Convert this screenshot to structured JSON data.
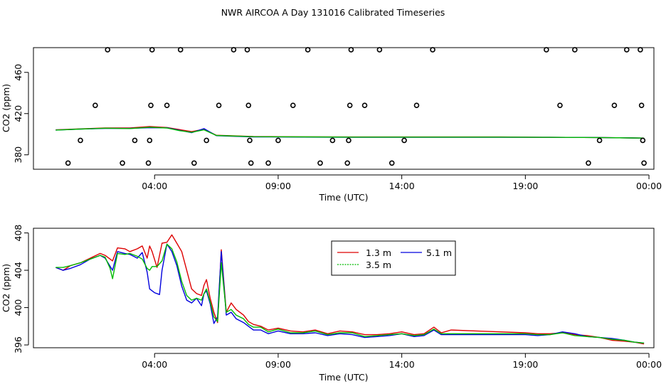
{
  "figure_title": "NWR AIRCOA A  Day 131016  Calibrated Timeseries",
  "colors": {
    "red": "#dd0000",
    "green": "#00bb00",
    "blue": "#0000dd",
    "axis": "#000000"
  },
  "chart_data": [
    {
      "type": "line",
      "title": "",
      "xlabel": "Time (UTC)",
      "ylabel": "CO2 (ppm)",
      "xlim": [
        -0.9,
        24.2
      ],
      "ylim": [
        366,
        484
      ],
      "xticks": [
        {
          "at": 4,
          "label": "04:00"
        },
        {
          "at": 9,
          "label": "09:00"
        },
        {
          "at": 14,
          "label": "14:00"
        },
        {
          "at": 19,
          "label": "19:00"
        },
        {
          "at": 24,
          "label": "00:00"
        }
      ],
      "yticks": [
        380,
        420,
        460
      ],
      "grid": false,
      "calibration_points": [
        {
          "x": 0.5,
          "y": 372
        },
        {
          "x": 1.0,
          "y": 394
        },
        {
          "x": 1.6,
          "y": 428
        },
        {
          "x": 2.1,
          "y": 482
        },
        {
          "x": 2.7,
          "y": 372
        },
        {
          "x": 3.2,
          "y": 394
        },
        {
          "x": 3.75,
          "y": 372
        },
        {
          "x": 3.8,
          "y": 394
        },
        {
          "x": 3.85,
          "y": 428
        },
        {
          "x": 3.9,
          "y": 482
        },
        {
          "x": 4.5,
          "y": 428
        },
        {
          "x": 5.05,
          "y": 482
        },
        {
          "x": 5.6,
          "y": 372
        },
        {
          "x": 6.1,
          "y": 394
        },
        {
          "x": 6.6,
          "y": 428
        },
        {
          "x": 7.2,
          "y": 482
        },
        {
          "x": 7.75,
          "y": 482
        },
        {
          "x": 7.8,
          "y": 428
        },
        {
          "x": 7.85,
          "y": 394
        },
        {
          "x": 7.9,
          "y": 372
        },
        {
          "x": 8.6,
          "y": 372
        },
        {
          "x": 9.0,
          "y": 394
        },
        {
          "x": 9.6,
          "y": 428
        },
        {
          "x": 10.2,
          "y": 482
        },
        {
          "x": 10.7,
          "y": 372
        },
        {
          "x": 11.2,
          "y": 394
        },
        {
          "x": 11.8,
          "y": 372
        },
        {
          "x": 11.85,
          "y": 394
        },
        {
          "x": 11.9,
          "y": 428
        },
        {
          "x": 11.95,
          "y": 482
        },
        {
          "x": 12.5,
          "y": 428
        },
        {
          "x": 13.1,
          "y": 482
        },
        {
          "x": 13.6,
          "y": 372
        },
        {
          "x": 14.1,
          "y": 394
        },
        {
          "x": 14.6,
          "y": 428
        },
        {
          "x": 15.25,
          "y": 482
        },
        {
          "x": 19.85,
          "y": 482
        },
        {
          "x": 20.4,
          "y": 428
        },
        {
          "x": 21.0,
          "y": 482
        },
        {
          "x": 21.55,
          "y": 372
        },
        {
          "x": 22.0,
          "y": 394
        },
        {
          "x": 22.6,
          "y": 428
        },
        {
          "x": 23.1,
          "y": 482
        },
        {
          "x": 23.65,
          "y": 482
        },
        {
          "x": 23.7,
          "y": 428
        },
        {
          "x": 23.75,
          "y": 394
        },
        {
          "x": 23.8,
          "y": 372
        }
      ],
      "series": [
        {
          "name": "1.3 m",
          "color": "#dd0000",
          "x": [
            0.0,
            1.0,
            2.0,
            3.0,
            3.8,
            4.5,
            5.0,
            5.5,
            6.0,
            6.5,
            8.0,
            10.0,
            12.0,
            14.0,
            16.0,
            18.0,
            20.0,
            22.0,
            23.8
          ],
          "values": [
            404.2,
            405.2,
            406.0,
            406.0,
            407.5,
            406.5,
            404.5,
            402.5,
            404.8,
            399.0,
            397.8,
            397.5,
            397.3,
            397.3,
            397.3,
            397.3,
            397.0,
            396.8,
            396.2
          ]
        },
        {
          "name": "3.5 m",
          "color": "#00bb00",
          "x": [
            0.0,
            1.0,
            2.0,
            3.0,
            3.8,
            4.5,
            5.0,
            5.5,
            6.0,
            6.5,
            8.0,
            10.0,
            12.0,
            14.0,
            16.0,
            18.0,
            20.0,
            22.0,
            23.8
          ],
          "values": [
            404.0,
            405.0,
            405.8,
            405.5,
            406.8,
            406.0,
            403.5,
            401.8,
            404.2,
            398.8,
            397.6,
            397.4,
            397.2,
            397.2,
            397.2,
            397.2,
            397.0,
            396.8,
            396.2
          ]
        },
        {
          "name": "5.1 m",
          "color": "#0000dd",
          "x": [
            0.0,
            1.0,
            2.0,
            3.0,
            3.8,
            4.5,
            5.0,
            5.5,
            6.0,
            6.5,
            8.0,
            10.0,
            12.0,
            14.0,
            16.0,
            18.0,
            20.0,
            22.0,
            23.8
          ],
          "values": [
            404.0,
            405.0,
            405.6,
            405.6,
            406.4,
            406.2,
            403.8,
            401.5,
            405.4,
            398.6,
            397.4,
            397.2,
            397.0,
            397.0,
            397.0,
            397.0,
            397.0,
            396.8,
            396.2
          ]
        }
      ]
    },
    {
      "type": "line",
      "title": "",
      "xlabel": "Time (UTC)",
      "ylabel": "CO2 (ppm)",
      "xlim": [
        -0.9,
        24.2
      ],
      "ylim": [
        395.7,
        408.5
      ],
      "xticks": [
        {
          "at": 4,
          "label": "04:00"
        },
        {
          "at": 9,
          "label": "09:00"
        },
        {
          "at": 14,
          "label": "14:00"
        },
        {
          "at": 19,
          "label": "19:00"
        },
        {
          "at": 24,
          "label": "00:00"
        }
      ],
      "yticks": [
        396,
        400,
        404,
        408
      ],
      "grid": false,
      "legend_position": "top-center",
      "legend": [
        "1.3 m",
        "3.5 m",
        "5.1 m"
      ],
      "series": [
        {
          "name": "1.3 m",
          "color": "#dd0000",
          "x": [
            0.0,
            0.3,
            0.6,
            1.0,
            1.4,
            1.8,
            2.0,
            2.3,
            2.5,
            2.8,
            3.0,
            3.3,
            3.5,
            3.7,
            3.8,
            3.9,
            4.1,
            4.3,
            4.5,
            4.7,
            4.9,
            5.1,
            5.3,
            5.5,
            5.7,
            5.9,
            6.0,
            6.1,
            6.25,
            6.4,
            6.55,
            6.7,
            6.9,
            7.1,
            7.3,
            7.6,
            7.8,
            8.0,
            8.3,
            8.6,
            9.0,
            9.5,
            10.0,
            10.5,
            11.0,
            11.5,
            12.0,
            12.5,
            13.0,
            13.5,
            14.0,
            14.5,
            14.9,
            15.3,
            15.6,
            16.0,
            17.0,
            18.0,
            19.0,
            19.5,
            20.0,
            20.5,
            21.0,
            21.5,
            22.0,
            22.5,
            23.0,
            23.4,
            23.8
          ],
          "values": [
            404.3,
            404.0,
            404.5,
            404.8,
            405.3,
            405.8,
            405.6,
            405.0,
            406.4,
            406.3,
            406.0,
            406.3,
            406.6,
            405.3,
            406.6,
            406.0,
            404.3,
            406.9,
            407.0,
            407.8,
            406.9,
            406.0,
            404.0,
            402.0,
            401.5,
            401.3,
            402.4,
            403.0,
            401.0,
            399.5,
            398.4,
            406.2,
            399.5,
            400.5,
            399.8,
            399.2,
            398.5,
            398.2,
            398.0,
            397.6,
            397.8,
            397.5,
            397.4,
            397.6,
            397.2,
            397.5,
            397.4,
            397.1,
            397.1,
            397.2,
            397.4,
            397.1,
            397.2,
            397.9,
            397.3,
            397.6,
            397.5,
            397.4,
            397.3,
            397.2,
            397.2,
            397.3,
            397.1,
            397.0,
            396.8,
            396.5,
            396.4,
            396.3,
            396.1
          ]
        },
        {
          "name": "3.5 m",
          "color": "#00bb00",
          "x": [
            0.0,
            0.3,
            0.6,
            1.0,
            1.4,
            1.8,
            2.0,
            2.2,
            2.3,
            2.5,
            2.8,
            3.0,
            3.3,
            3.5,
            3.7,
            3.8,
            3.9,
            4.1,
            4.3,
            4.5,
            4.7,
            4.9,
            5.1,
            5.3,
            5.5,
            5.7,
            5.9,
            6.0,
            6.1,
            6.25,
            6.4,
            6.55,
            6.7,
            6.9,
            7.1,
            7.3,
            7.6,
            7.8,
            8.0,
            8.3,
            8.6,
            9.0,
            9.5,
            10.0,
            10.5,
            11.0,
            11.5,
            12.0,
            12.5,
            13.0,
            13.5,
            14.0,
            14.5,
            14.9,
            15.3,
            15.6,
            16.0,
            17.0,
            18.0,
            19.0,
            19.5,
            20.0,
            20.5,
            21.0,
            21.5,
            22.0,
            22.5,
            23.0,
            23.4,
            23.8
          ],
          "values": [
            404.3,
            404.3,
            404.5,
            404.8,
            405.2,
            405.6,
            405.4,
            404.2,
            403.1,
            405.8,
            405.7,
            405.8,
            405.5,
            405.2,
            404.2,
            404.0,
            404.4,
            404.4,
            405.0,
            406.8,
            406.3,
            404.9,
            402.8,
            401.3,
            400.8,
            401.0,
            400.8,
            401.5,
            402.0,
            400.6,
            399.0,
            398.5,
            404.8,
            399.5,
            399.8,
            399.2,
            398.8,
            398.2,
            397.9,
            397.9,
            397.4,
            397.7,
            397.3,
            397.3,
            397.5,
            397.1,
            397.3,
            397.3,
            396.9,
            397.0,
            397.1,
            397.2,
            397.0,
            397.1,
            397.7,
            397.2,
            397.2,
            397.2,
            397.2,
            397.2,
            397.1,
            397.1,
            397.3,
            397.0,
            396.9,
            396.8,
            396.6,
            396.5,
            396.3,
            396.2
          ]
        },
        {
          "name": "5.1 m",
          "color": "#0000dd",
          "x": [
            0.0,
            0.3,
            0.6,
            1.0,
            1.4,
            1.8,
            2.0,
            2.3,
            2.5,
            2.8,
            3.0,
            3.3,
            3.5,
            3.7,
            3.8,
            4.0,
            4.2,
            4.3,
            4.5,
            4.7,
            4.9,
            5.1,
            5.3,
            5.5,
            5.7,
            5.9,
            6.0,
            6.1,
            6.25,
            6.4,
            6.55,
            6.7,
            6.9,
            7.1,
            7.3,
            7.6,
            7.8,
            8.0,
            8.3,
            8.6,
            9.0,
            9.5,
            10.0,
            10.5,
            11.0,
            11.5,
            12.0,
            12.5,
            13.0,
            13.5,
            14.0,
            14.5,
            14.9,
            15.3,
            15.6,
            16.0,
            17.0,
            18.0,
            19.0,
            19.5,
            20.0,
            20.5,
            21.0,
            21.5,
            22.0,
            22.5,
            23.0,
            23.4,
            23.8
          ],
          "values": [
            404.3,
            404.0,
            404.2,
            404.6,
            405.2,
            405.6,
            405.3,
            404.0,
            406.0,
            405.8,
            405.7,
            405.3,
            405.9,
            403.8,
            402.0,
            401.6,
            401.4,
            404.0,
            406.8,
            406.0,
            404.5,
            402.3,
            400.8,
            400.5,
            401.0,
            400.2,
            401.5,
            401.8,
            400.4,
            398.3,
            399.0,
            406.0,
            399.2,
            399.5,
            398.8,
            398.4,
            398.0,
            397.6,
            397.6,
            397.2,
            397.5,
            397.2,
            397.2,
            397.3,
            397.0,
            397.2,
            397.1,
            396.8,
            396.9,
            397.0,
            397.2,
            396.9,
            397.0,
            397.6,
            397.1,
            397.1,
            397.1,
            397.1,
            397.1,
            397.0,
            397.1,
            397.4,
            397.2,
            396.9,
            396.8,
            396.7,
            396.5,
            396.3,
            396.2
          ]
        }
      ]
    }
  ]
}
